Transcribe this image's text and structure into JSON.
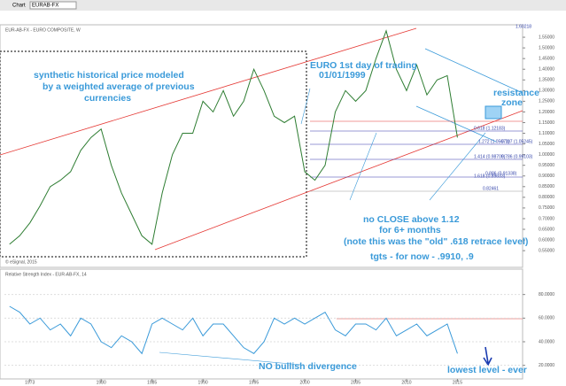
{
  "toolbar": {
    "title": "Chart",
    "symbol": "EURAB-FX"
  },
  "chart_data": [
    {
      "type": "line",
      "title": "EUR-AB-FX - EURO COMPOSITE, W",
      "x": [
        1971,
        1972,
        1973,
        1974,
        1975,
        1976,
        1977,
        1978,
        1979,
        1980,
        1981,
        1982,
        1983,
        1984,
        1985,
        1986,
        1987,
        1988,
        1989,
        1990,
        1991,
        1992,
        1993,
        1994,
        1995,
        1996,
        1997,
        1998,
        1999,
        2000,
        2001,
        2002,
        2003,
        2004,
        2005,
        2006,
        2007,
        2008,
        2009,
        2010,
        2011,
        2012,
        2013,
        2014,
        2015
      ],
      "series": [
        {
          "name": "EUR-AB-FX",
          "color": "#2e7d32",
          "values": [
            0.58,
            0.62,
            0.68,
            0.76,
            0.85,
            0.88,
            0.92,
            1.02,
            1.08,
            1.12,
            0.95,
            0.82,
            0.72,
            0.62,
            0.58,
            0.82,
            1.0,
            1.1,
            1.1,
            1.25,
            1.2,
            1.3,
            1.18,
            1.25,
            1.4,
            1.3,
            1.18,
            1.15,
            1.18,
            0.92,
            0.88,
            0.95,
            1.2,
            1.3,
            1.25,
            1.3,
            1.45,
            1.58,
            1.4,
            1.3,
            1.42,
            1.28,
            1.35,
            1.37,
            1.08
          ]
        }
      ],
      "xlim": [
        1970.5,
        2021.4
      ],
      "ylim": [
        0.48,
        1.6
      ],
      "xticks": [
        1973,
        1980,
        1985,
        1990,
        1995,
        2000,
        2005,
        2010,
        2015
      ],
      "yticks": [
        {
          "value": 1.55,
          "label": "1.55000"
        },
        {
          "value": 1.5,
          "label": "1.50000"
        },
        {
          "value": 1.45,
          "label": "1.45000"
        },
        {
          "value": 1.4,
          "label": "1.40000"
        },
        {
          "value": 1.35,
          "label": "1.35000"
        },
        {
          "value": 1.3,
          "label": "1.30000"
        },
        {
          "value": 1.25,
          "label": "1.25000"
        },
        {
          "value": 1.2,
          "label": "1.20000"
        },
        {
          "value": 1.15,
          "label": "1.15000"
        },
        {
          "value": 1.1,
          "label": "1.10000"
        },
        {
          "value": 1.05,
          "label": "1.05000"
        },
        {
          "value": 1.0,
          "label": "1.00000"
        },
        {
          "value": 0.95,
          "label": "0.95000"
        },
        {
          "value": 0.9,
          "label": "0.90000"
        },
        {
          "value": 0.85,
          "label": "0.85000"
        },
        {
          "value": 0.8,
          "label": "0.80000"
        },
        {
          "value": 0.75,
          "label": "0.75000"
        },
        {
          "value": 0.7,
          "label": "0.70000"
        },
        {
          "value": 0.65,
          "label": "0.65000"
        },
        {
          "value": 0.6,
          "label": "0.60000"
        },
        {
          "value": 0.55,
          "label": "0.55000"
        }
      ],
      "annotations": [
        "synthetic historical price modeled",
        "by a weighted average of previous",
        "currencies",
        "EURO 1st day of trading",
        "01/01/1999",
        "resistance",
        "zone",
        "no CLOSE above 1.12",
        "for 6+ months",
        "(note this was the \"old\" .618 retrace level)",
        "tgts - for now - .9910, .9"
      ],
      "fib_labels": [
        "1.60218",
        "0.618 (1.12183)",
        "1.272 (1.05671)",
        "0.707 (1.05245)",
        "1.414 (0.98709)",
        "0.786 (0.99103)",
        "0.886 (0.91338)",
        "1.618 (0.89633)",
        "0.82461"
      ],
      "credit": "© eSignal, 2015"
    },
    {
      "type": "line",
      "title": "Relative Strength Index - EUR-AB-FX, 14",
      "x": [
        1971,
        1972,
        1973,
        1974,
        1975,
        1976,
        1977,
        1978,
        1979,
        1980,
        1981,
        1982,
        1983,
        1984,
        1985,
        1986,
        1987,
        1988,
        1989,
        1990,
        1991,
        1992,
        1993,
        1994,
        1995,
        1996,
        1997,
        1998,
        1999,
        2000,
        2001,
        2002,
        2003,
        2004,
        2005,
        2006,
        2007,
        2008,
        2009,
        2010,
        2011,
        2012,
        2013,
        2014,
        2015
      ],
      "series": [
        {
          "name": "RSI",
          "color": "#3a9ad9",
          "values": [
            70,
            65,
            55,
            60,
            50,
            55,
            45,
            60,
            55,
            40,
            35,
            45,
            40,
            30,
            55,
            60,
            55,
            50,
            60,
            45,
            55,
            55,
            45,
            35,
            30,
            40,
            60,
            55,
            60,
            55,
            60,
            65,
            50,
            45,
            55,
            55,
            50,
            60,
            45,
            50,
            55,
            45,
            50,
            55,
            30
          ]
        }
      ],
      "xlim": [
        1970.5,
        2021.4
      ],
      "ylim": [
        10,
        100
      ],
      "yticks": [
        {
          "value": 80,
          "label": "80.0000"
        },
        {
          "value": 60,
          "label": "60.0000"
        },
        {
          "value": 40,
          "label": "40.0000"
        },
        {
          "value": 20,
          "label": "20.0000"
        }
      ],
      "annotations": [
        "NO bullish divergence",
        "lowest level - ever"
      ]
    }
  ]
}
